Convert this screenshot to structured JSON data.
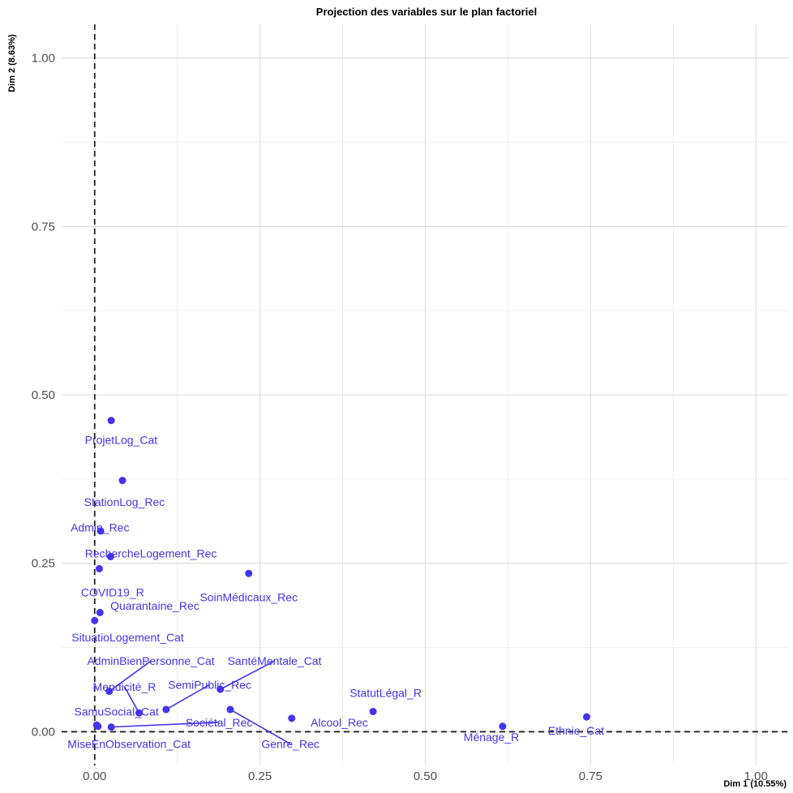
{
  "chart_data": {
    "type": "scatter",
    "title": "Projection des variables sur le plan factoriel",
    "xlabel": "Dim 1 (10.55%)",
    "ylabel": "Dim 2 (8.63%)",
    "xlim": [
      -0.05,
      1.05
    ],
    "ylim": [
      -0.05,
      1.05
    ],
    "x_ticks": [
      0.0,
      0.25,
      0.5,
      0.75,
      1.0
    ],
    "x_tick_labels": [
      "0.00",
      "0.25",
      "0.50",
      "0.75",
      "1.00"
    ],
    "y_ticks": [
      0.0,
      0.25,
      0.5,
      0.75,
      1.0
    ],
    "y_tick_labels": [
      "0.00",
      "0.25",
      "0.50",
      "0.75",
      "1.00"
    ],
    "grid": true,
    "reference_lines": {
      "x": 0,
      "y": 0,
      "style": "dashed"
    },
    "point_color": "#4433ee",
    "points": [
      {
        "label": "ProjetLog_Cat",
        "x": 0.025,
        "y": 0.462,
        "lx": 0.04,
        "ly": 0.433
      },
      {
        "label": "StationLog_Rec",
        "x": 0.042,
        "y": 0.373,
        "lx": 0.045,
        "ly": 0.341
      },
      {
        "label": "Admin_Rec",
        "x": 0.009,
        "y": 0.298,
        "lx": 0.008,
        "ly": 0.303
      },
      {
        "label": "RechercheLogement_Rec",
        "x": 0.024,
        "y": 0.26,
        "lx": 0.085,
        "ly": 0.265
      },
      {
        "label": "COVID19_R",
        "x": 0.007,
        "y": 0.242,
        "lx": 0.027,
        "ly": 0.207
      },
      {
        "label": "SoinMédicaux_Rec",
        "x": 0.233,
        "y": 0.235,
        "lx": 0.233,
        "ly": 0.2
      },
      {
        "label": "Quarantaine_Rec",
        "x": 0.008,
        "y": 0.177,
        "lx": 0.091,
        "ly": 0.187
      },
      {
        "label": "SituatioLogement_Cat",
        "x": 0.0,
        "y": 0.165,
        "lx": 0.05,
        "ly": 0.14
      },
      {
        "label": "AdminBienPersonne_Cat",
        "x": 0.022,
        "y": 0.06,
        "lx": 0.085,
        "ly": 0.105,
        "leader": true
      },
      {
        "label": "SantéMentale_Cat",
        "x": 0.19,
        "y": 0.063,
        "lx": 0.272,
        "ly": 0.105,
        "leader": true
      },
      {
        "label": "Mendicité_R",
        "x": 0.067,
        "y": 0.028,
        "lx": 0.045,
        "ly": 0.067,
        "leader": true
      },
      {
        "label": "SemiPublic_Rec",
        "x": 0.108,
        "y": 0.033,
        "lx": 0.174,
        "ly": 0.07,
        "leader": true
      },
      {
        "label": "SamuSocial_Cat",
        "x": 0.003,
        "y": 0.01,
        "lx": 0.033,
        "ly": 0.03
      },
      {
        "label": "Sociétal_Rec",
        "x": 0.025,
        "y": 0.007,
        "lx": 0.188,
        "ly": 0.014,
        "leader": true
      },
      {
        "label": "Genre_Rec",
        "x": 0.205,
        "y": 0.033,
        "lx": 0.296,
        "ly": -0.018,
        "leader": true
      },
      {
        "label": "Alcool_Rec",
        "x": 0.298,
        "y": 0.02,
        "lx": 0.37,
        "ly": 0.014
      },
      {
        "label": "StatutLégal_R",
        "x": 0.421,
        "y": 0.03,
        "lx": 0.44,
        "ly": 0.058
      },
      {
        "label": "Ménage_R",
        "x": 0.617,
        "y": 0.008,
        "lx": 0.6,
        "ly": -0.008
      },
      {
        "label": "Ethnie_Cat",
        "x": 0.744,
        "y": 0.022,
        "lx": 0.728,
        "ly": 0.002
      },
      {
        "label": "MiseEnObservation_Cat",
        "x": 0.005,
        "y": 0.008,
        "lx": 0.052,
        "ly": -0.018
      }
    ]
  }
}
